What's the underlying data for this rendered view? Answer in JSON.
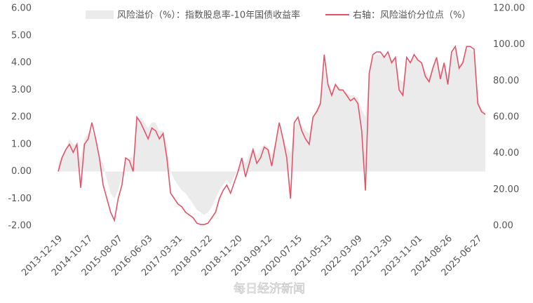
{
  "chart_data": {
    "type": "area-line",
    "categories": [
      "2013-12-19",
      null,
      null,
      null,
      null,
      null,
      null,
      null,
      "2014-10-17",
      null,
      null,
      null,
      null,
      null,
      null,
      null,
      "2015-08-07",
      null,
      null,
      null,
      null,
      null,
      null,
      null,
      "2016-06-03",
      null,
      null,
      null,
      null,
      null,
      null,
      null,
      "2017-03-31",
      null,
      null,
      null,
      null,
      null,
      null,
      null,
      "2018-01-22",
      null,
      null,
      null,
      null,
      null,
      null,
      null,
      "2018-11-20",
      null,
      null,
      null,
      null,
      null,
      null,
      null,
      "2019-09-12",
      null,
      null,
      null,
      null,
      null,
      null,
      null,
      "2020-07-15",
      null,
      null,
      null,
      null,
      null,
      null,
      null,
      "2021-05-13",
      null,
      null,
      null,
      null,
      null,
      null,
      null,
      "2022-03-09",
      null,
      null,
      null,
      null,
      null,
      null,
      null,
      "2022-12-30",
      null,
      null,
      null,
      null,
      null,
      null,
      null,
      "2023-11-01",
      null,
      null,
      null,
      null,
      null,
      null,
      null,
      "2024-08-26",
      null,
      null,
      null,
      null,
      null,
      null,
      null,
      "2025-06-27",
      null,
      null
    ],
    "series": [
      {
        "name": "风险溢价（%）：指数股息率-10年国债收益率",
        "color": "#ebebeb",
        "kind": "area",
        "values": [
          0.3,
          0.6,
          0.8,
          1.2,
          1.0,
          1.0,
          0.5,
          1.2,
          1.4,
          1.5,
          1.2,
          0.5,
          0.3,
          -0.3,
          -0.8,
          -1.0,
          -0.7,
          -0.2,
          0.3,
          0.5,
          0.5,
          1.8,
          2.0,
          1.8,
          1.6,
          1.8,
          1.8,
          1.5,
          1.5,
          1.0,
          0.0,
          -0.3,
          -0.5,
          -0.7,
          -0.8,
          -1.0,
          -1.2,
          -1.4,
          -1.5,
          -1.6,
          -1.5,
          -1.3,
          -1.0,
          -0.7,
          -0.5,
          -0.3,
          -0.5,
          -0.2,
          0.1,
          0.5,
          0.3,
          0.6,
          0.9,
          0.6,
          0.8,
          1.0,
          0.9,
          0.6,
          1.1,
          1.6,
          1.3,
          0.9,
          0.7,
          1.6,
          1.9,
          1.7,
          1.5,
          1.4,
          2.0,
          2.3,
          2.6,
          3.8,
          3.3,
          3.0,
          3.2,
          3.1,
          3.0,
          2.9,
          2.8,
          2.8,
          2.7,
          2.3,
          2.0,
          3.6,
          4.2,
          4.3,
          4.3,
          4.2,
          4.3,
          4.1,
          4.2,
          3.4,
          3.3,
          4.1,
          4.0,
          4.2,
          4.1,
          4.0,
          3.7,
          3.5,
          3.9,
          4.1,
          3.6,
          4.0,
          3.5,
          4.3,
          4.5,
          3.9,
          4.1,
          4.5,
          4.5,
          4.4,
          2.7,
          2.3,
          2.2
        ]
      },
      {
        "name": "右轴：风险溢价分位点（%）",
        "color": "#e4536a",
        "kind": "line",
        "axis": "y2",
        "values": [
          30,
          37.5,
          42,
          45,
          40.5,
          45,
          21,
          45,
          48,
          57,
          48,
          37.5,
          22.5,
          15,
          7.5,
          3,
          15,
          22.5,
          37.5,
          36,
          30,
          60,
          57,
          52.5,
          48,
          54,
          52.5,
          48,
          51,
          37.5,
          18,
          15,
          12,
          10.5,
          7.5,
          6,
          4.5,
          1.5,
          0.75,
          0.75,
          1.5,
          4.5,
          7.5,
          15,
          19.5,
          22.5,
          18,
          24,
          30,
          37.5,
          27,
          34.5,
          42,
          34.5,
          37.5,
          43.5,
          42,
          33,
          45,
          57,
          48,
          37.5,
          15,
          57,
          60,
          52.5,
          48,
          45,
          60,
          63,
          67.5,
          94.5,
          78,
          72,
          78,
          75,
          75,
          72,
          69,
          70.5,
          67.5,
          52.5,
          19.5,
          84,
          94.5,
          96,
          96,
          93,
          96,
          90,
          93,
          75,
          72,
          93,
          90,
          94.5,
          91.5,
          90,
          82.5,
          79.5,
          87,
          93,
          81,
          90,
          78,
          96,
          99,
          87,
          90,
          99,
          99,
          97.5,
          67.5,
          63,
          61.5
        ]
      }
    ],
    "ylim": [
      -2,
      6
    ],
    "yticks": [
      {
        "value": -2,
        "label": "-2.00"
      },
      {
        "value": -1,
        "label": "-1.00"
      },
      {
        "value": 0,
        "label": "0.00"
      },
      {
        "value": 1,
        "label": "1.00"
      },
      {
        "value": 2,
        "label": "2.00"
      },
      {
        "value": 3,
        "label": "3.00"
      },
      {
        "value": 4,
        "label": "4.00"
      },
      {
        "value": 5,
        "label": "5.00"
      },
      {
        "value": 6,
        "label": "6.00"
      }
    ],
    "y2lim": [
      0,
      120
    ],
    "y2ticks": [
      {
        "value": 0,
        "label": "0.00"
      },
      {
        "value": 20,
        "label": "20.00"
      },
      {
        "value": 40,
        "label": "40.00"
      },
      {
        "value": 60,
        "label": "60.00"
      },
      {
        "value": 80,
        "label": "80.00"
      },
      {
        "value": 100,
        "label": "100.00"
      },
      {
        "value": 120,
        "label": "120.00"
      }
    ],
    "grid": false,
    "legend": "top",
    "watermark": "每日经济新闻"
  }
}
